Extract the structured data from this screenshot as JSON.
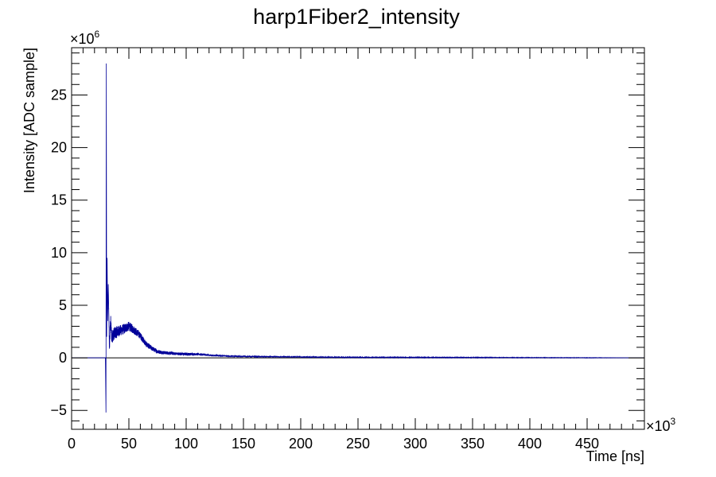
{
  "chart_data": {
    "type": "line",
    "title": "harp1Fiber2_intensity",
    "xlabel": "Time [ns]",
    "ylabel": "Intensity [ADC sample]",
    "x_multiplier": "×10",
    "x_multiplier_exp": "3",
    "y_multiplier": "×10",
    "y_multiplier_exp": "6",
    "xlim": [
      0,
      500
    ],
    "ylim": [
      -6.8,
      29.5
    ],
    "x_ticks": [
      0,
      50,
      100,
      150,
      200,
      250,
      300,
      350,
      400,
      450
    ],
    "x_tick_labels": [
      "0",
      "50",
      "100",
      "150",
      "200",
      "250",
      "300",
      "350",
      "400",
      "450"
    ],
    "y_ticks": [
      -5,
      0,
      5,
      10,
      15,
      20,
      25
    ],
    "y_tick_labels": [
      "−5",
      "0",
      "5",
      "10",
      "15",
      "20",
      "25"
    ],
    "series": [
      {
        "color": "#000099",
        "x": [
          0,
          29.5,
          30.0,
          30.3,
          30.6,
          31.0,
          31.5,
          32.0,
          33,
          34,
          35,
          37,
          40,
          45,
          50,
          55,
          60,
          65,
          70,
          75,
          80,
          90,
          100,
          110,
          120,
          140,
          160,
          200,
          250,
          300,
          350,
          400,
          450,
          500
        ],
        "y": [
          0,
          0,
          -5.2,
          28.0,
          2.0,
          9.5,
          3.5,
          7.0,
          1.0,
          3.5,
          2.0,
          2.3,
          2.5,
          2.7,
          3.0,
          2.6,
          2.1,
          1.3,
          0.9,
          0.6,
          0.5,
          0.4,
          0.35,
          0.35,
          0.25,
          0.15,
          0.12,
          0.08,
          0.05,
          0.04,
          0.03,
          0.02,
          0.01,
          0.0
        ],
        "noise": [
          0,
          0,
          0,
          0,
          0,
          0,
          0,
          0,
          1.2,
          1.4,
          1.2,
          1.1,
          1.0,
          0.9,
          0.8,
          0.7,
          0.6,
          0.5,
          0.4,
          0.35,
          0.3,
          0.25,
          0.25,
          0.2,
          0.15,
          0.12,
          0.1,
          0.07,
          0.05,
          0.04,
          0.03,
          0.02,
          0.02,
          0.0
        ]
      }
    ],
    "grid": false
  }
}
